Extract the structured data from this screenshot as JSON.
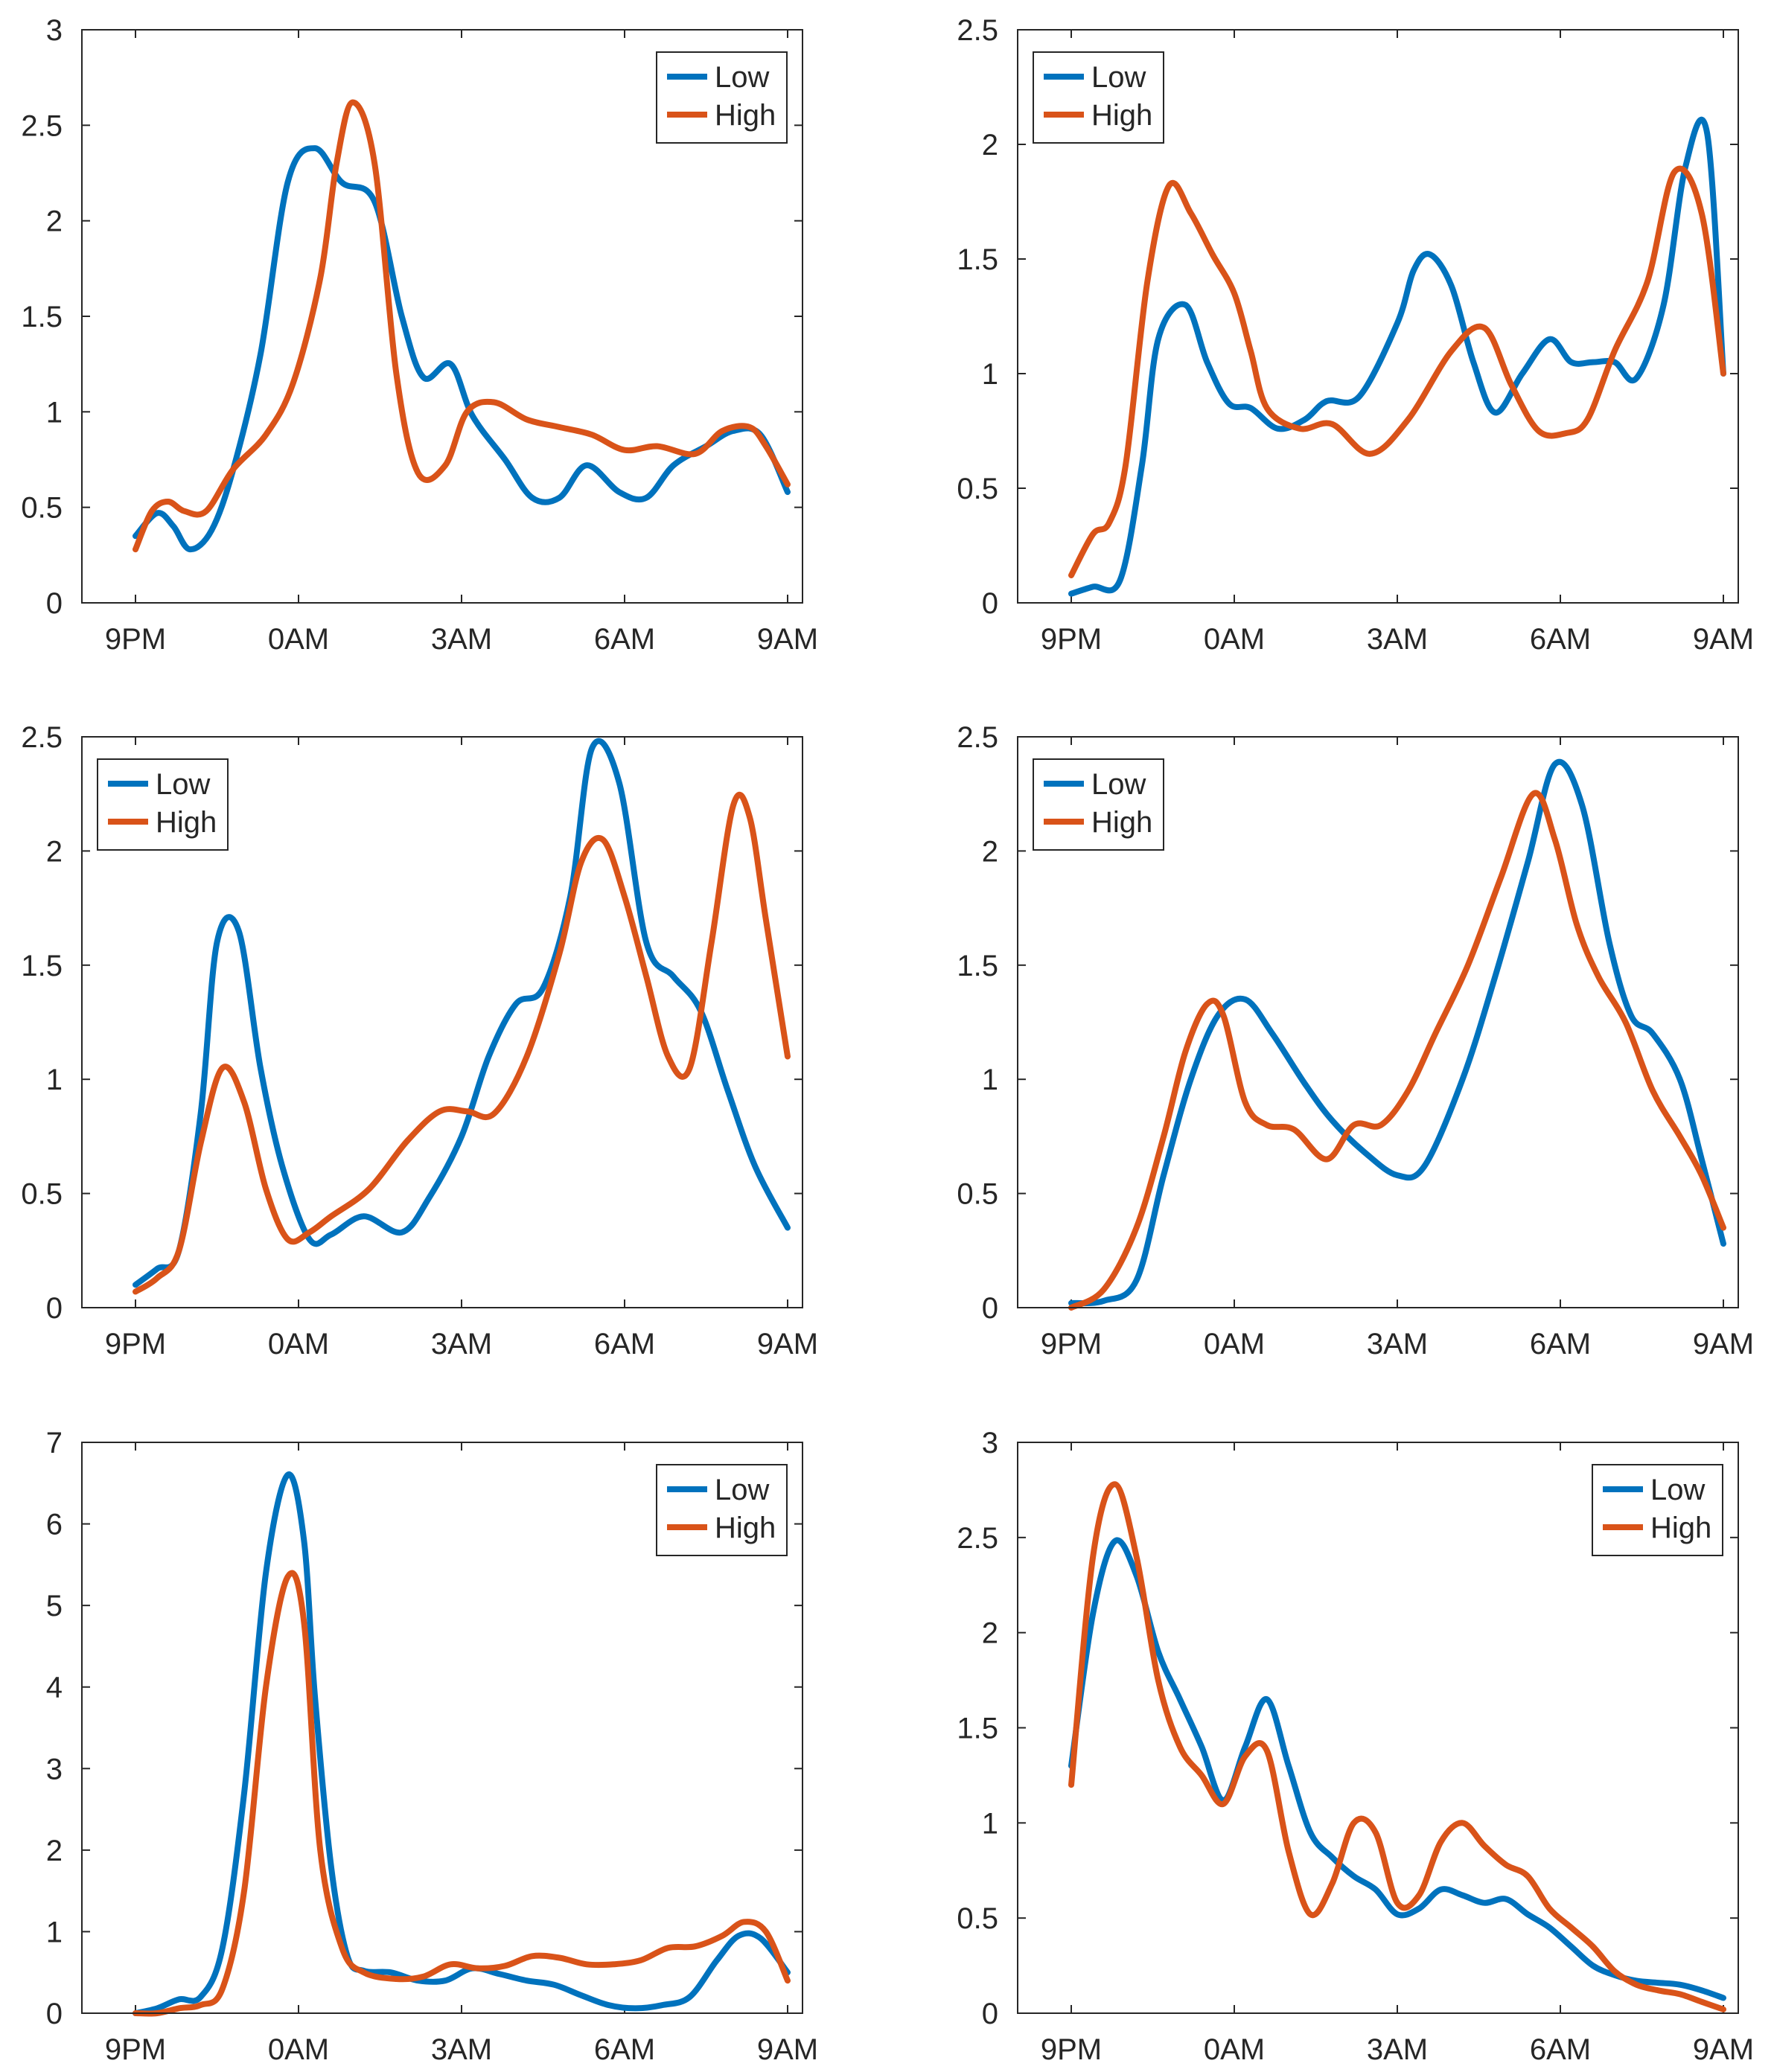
{
  "colors": {
    "low": "#0072BD",
    "high": "#D95319",
    "axis": "#262626",
    "grid": "#bdbdbd"
  },
  "chart_data": [
    {
      "type": "line",
      "x_tick_labels": [
        "9PM",
        "0AM",
        "3AM",
        "6AM",
        "9AM"
      ],
      "xlim": [
        0,
        12
      ],
      "ylim": [
        0,
        3
      ],
      "y_ticks": [
        0,
        0.5,
        1,
        1.5,
        2,
        2.5,
        3
      ],
      "y_tick_labels": [
        "0",
        "0.5",
        "1",
        "1.5",
        "2",
        "2.5",
        "3"
      ],
      "legend_position": "top-right",
      "series": [
        {
          "name": "Low",
          "color": "#0072BD",
          "x": [
            0,
            0.4,
            0.7,
            1.0,
            1.4,
            1.8,
            2.3,
            2.8,
            3.3,
            3.8,
            4.4,
            4.9,
            5.3,
            5.8,
            6.2,
            6.8,
            7.3,
            7.8,
            8.3,
            8.9,
            9.4,
            9.9,
            10.5,
            11.0,
            11.5,
            12.0
          ],
          "y": [
            0.35,
            0.47,
            0.4,
            0.28,
            0.38,
            0.7,
            1.3,
            2.2,
            2.38,
            2.2,
            2.1,
            1.5,
            1.18,
            1.25,
            0.98,
            0.75,
            0.55,
            0.55,
            0.72,
            0.58,
            0.55,
            0.72,
            0.82,
            0.9,
            0.88,
            0.58
          ]
        },
        {
          "name": "High",
          "color": "#D95319",
          "x": [
            0,
            0.3,
            0.6,
            0.9,
            1.3,
            1.8,
            2.4,
            2.9,
            3.4,
            3.7,
            4.0,
            4.4,
            4.8,
            5.2,
            5.7,
            6.1,
            6.6,
            7.2,
            7.8,
            8.4,
            9.0,
            9.6,
            10.3,
            10.8,
            11.3,
            11.6,
            12.0
          ],
          "y": [
            0.28,
            0.48,
            0.53,
            0.48,
            0.48,
            0.7,
            0.88,
            1.15,
            1.7,
            2.3,
            2.62,
            2.3,
            1.2,
            0.68,
            0.72,
            1.0,
            1.05,
            0.96,
            0.92,
            0.88,
            0.8,
            0.82,
            0.78,
            0.9,
            0.92,
            0.82,
            0.62
          ]
        }
      ]
    },
    {
      "type": "line",
      "x_tick_labels": [
        "9PM",
        "0AM",
        "3AM",
        "6AM",
        "9AM"
      ],
      "xlim": [
        0,
        12
      ],
      "ylim": [
        0,
        2.5
      ],
      "y_ticks": [
        0,
        0.5,
        1,
        1.5,
        2,
        2.5
      ],
      "y_tick_labels": [
        "0",
        "0.5",
        "1",
        "1.5",
        "2",
        "2.5"
      ],
      "legend_position": "top-left",
      "series": [
        {
          "name": "Low",
          "color": "#0072BD",
          "x": [
            0,
            0.4,
            0.9,
            1.3,
            1.6,
            2.1,
            2.5,
            2.9,
            3.3,
            3.8,
            4.3,
            4.7,
            5.3,
            6.0,
            6.3,
            6.6,
            7.0,
            7.4,
            7.8,
            8.3,
            8.8,
            9.2,
            9.6,
            10.0,
            10.4,
            10.9,
            11.3,
            11.7,
            12.0
          ],
          "y": [
            0.04,
            0.07,
            0.1,
            0.6,
            1.15,
            1.3,
            1.05,
            0.87,
            0.85,
            0.76,
            0.8,
            0.88,
            0.9,
            1.22,
            1.45,
            1.52,
            1.38,
            1.05,
            0.83,
            1.0,
            1.15,
            1.05,
            1.05,
            1.05,
            0.98,
            1.3,
            1.9,
            2.05,
            1.0
          ]
        },
        {
          "name": "High",
          "color": "#D95319",
          "x": [
            0,
            0.4,
            0.7,
            1.0,
            1.4,
            1.8,
            2.2,
            2.6,
            3.0,
            3.3,
            3.6,
            4.2,
            4.8,
            5.5,
            6.2,
            7.0,
            7.6,
            8.1,
            8.6,
            9.1,
            9.5,
            10.0,
            10.6,
            11.1,
            11.6,
            12.0
          ],
          "y": [
            0.12,
            0.3,
            0.35,
            0.6,
            1.4,
            1.82,
            1.7,
            1.52,
            1.35,
            1.1,
            0.85,
            0.76,
            0.78,
            0.65,
            0.8,
            1.1,
            1.2,
            0.95,
            0.75,
            0.74,
            0.8,
            1.1,
            1.4,
            1.88,
            1.7,
            1.0
          ]
        }
      ]
    },
    {
      "type": "line",
      "x_tick_labels": [
        "9PM",
        "0AM",
        "3AM",
        "6AM",
        "9AM"
      ],
      "xlim": [
        0,
        12
      ],
      "ylim": [
        0,
        2.5
      ],
      "y_ticks": [
        0,
        0.5,
        1,
        1.5,
        2,
        2.5
      ],
      "y_tick_labels": [
        "0",
        "0.5",
        "1",
        "1.5",
        "2",
        "2.5"
      ],
      "legend_position": "top-left",
      "series": [
        {
          "name": "Low",
          "color": "#0072BD",
          "x": [
            0,
            0.4,
            0.8,
            1.2,
            1.5,
            1.9,
            2.3,
            2.7,
            3.2,
            3.6,
            4.2,
            4.9,
            5.4,
            6.0,
            6.5,
            7.0,
            7.5,
            8.0,
            8.4,
            8.9,
            9.4,
            9.9,
            10.4,
            10.9,
            11.4,
            12.0
          ],
          "y": [
            0.1,
            0.17,
            0.25,
            0.85,
            1.6,
            1.65,
            1.05,
            0.62,
            0.3,
            0.32,
            0.4,
            0.33,
            0.48,
            0.75,
            1.1,
            1.33,
            1.4,
            1.8,
            2.45,
            2.3,
            1.6,
            1.45,
            1.3,
            0.95,
            0.62,
            0.35
          ]
        },
        {
          "name": "High",
          "color": "#D95319",
          "x": [
            0,
            0.4,
            0.8,
            1.2,
            1.6,
            2.0,
            2.4,
            2.8,
            3.2,
            3.6,
            4.3,
            5.0,
            5.6,
            6.1,
            6.6,
            7.2,
            7.8,
            8.2,
            8.6,
            9.0,
            9.4,
            9.8,
            10.2,
            10.6,
            11.0,
            11.3,
            11.6,
            12.0
          ],
          "y": [
            0.07,
            0.13,
            0.25,
            0.72,
            1.05,
            0.9,
            0.52,
            0.3,
            0.33,
            0.4,
            0.52,
            0.73,
            0.86,
            0.86,
            0.85,
            1.1,
            1.55,
            1.95,
            2.05,
            1.8,
            1.45,
            1.1,
            1.05,
            1.6,
            2.2,
            2.15,
            1.7,
            1.1
          ]
        }
      ]
    },
    {
      "type": "line",
      "x_tick_labels": [
        "9PM",
        "0AM",
        "3AM",
        "6AM",
        "9AM"
      ],
      "xlim": [
        0,
        12
      ],
      "ylim": [
        0,
        2.5
      ],
      "y_ticks": [
        0,
        0.5,
        1,
        1.5,
        2,
        2.5
      ],
      "y_tick_labels": [
        "0",
        "0.5",
        "1",
        "1.5",
        "2",
        "2.5"
      ],
      "legend_position": "top-left",
      "series": [
        {
          "name": "Low",
          "color": "#0072BD",
          "x": [
            0,
            0.6,
            1.2,
            1.7,
            2.2,
            2.7,
            3.2,
            3.7,
            4.3,
            4.8,
            5.4,
            6.0,
            6.5,
            7.2,
            7.8,
            8.4,
            8.9,
            9.4,
            9.9,
            10.3,
            10.7,
            11.2,
            11.6,
            12.0
          ],
          "y": [
            0.02,
            0.03,
            0.12,
            0.58,
            1.0,
            1.28,
            1.35,
            1.2,
            0.98,
            0.82,
            0.68,
            0.58,
            0.62,
            1.0,
            1.45,
            1.95,
            2.38,
            2.2,
            1.6,
            1.28,
            1.2,
            1.0,
            0.65,
            0.28
          ]
        },
        {
          "name": "High",
          "color": "#D95319",
          "x": [
            0,
            0.6,
            1.2,
            1.7,
            2.1,
            2.5,
            2.8,
            3.2,
            3.6,
            4.1,
            4.7,
            5.2,
            5.7,
            6.2,
            6.7,
            7.3,
            7.9,
            8.5,
            8.9,
            9.3,
            9.7,
            10.2,
            10.7,
            11.2,
            11.6,
            12.0
          ],
          "y": [
            0.0,
            0.08,
            0.35,
            0.75,
            1.12,
            1.33,
            1.28,
            0.9,
            0.8,
            0.78,
            0.65,
            0.8,
            0.8,
            0.95,
            1.2,
            1.5,
            1.88,
            2.25,
            2.05,
            1.68,
            1.45,
            1.25,
            0.95,
            0.75,
            0.58,
            0.35
          ]
        }
      ]
    },
    {
      "type": "line",
      "x_tick_labels": [
        "9PM",
        "0AM",
        "3AM",
        "6AM",
        "9AM"
      ],
      "xlim": [
        0,
        12
      ],
      "ylim": [
        0,
        7
      ],
      "y_ticks": [
        0,
        1,
        2,
        3,
        4,
        5,
        6,
        7
      ],
      "y_tick_labels": [
        "0",
        "1",
        "2",
        "3",
        "4",
        "5",
        "6",
        "7"
      ],
      "legend_position": "top-right",
      "series": [
        {
          "name": "Low",
          "color": "#0072BD",
          "x": [
            0,
            0.4,
            0.8,
            1.2,
            1.6,
            2.0,
            2.4,
            2.8,
            3.1,
            3.3,
            3.6,
            3.9,
            4.2,
            4.7,
            5.2,
            5.7,
            6.2,
            6.7,
            7.2,
            7.7,
            8.2,
            8.7,
            9.2,
            9.7,
            10.2,
            10.7,
            11.1,
            11.5,
            12.0
          ],
          "y": [
            0.0,
            0.06,
            0.17,
            0.2,
            0.8,
            2.7,
            5.4,
            6.6,
            5.8,
            3.9,
            1.8,
            0.7,
            0.52,
            0.5,
            0.4,
            0.4,
            0.55,
            0.48,
            0.4,
            0.35,
            0.22,
            0.1,
            0.06,
            0.1,
            0.2,
            0.65,
            0.95,
            0.92,
            0.5
          ]
        },
        {
          "name": "High",
          "color": "#D95319",
          "x": [
            0,
            0.4,
            0.8,
            1.2,
            1.6,
            2.0,
            2.4,
            2.8,
            3.1,
            3.4,
            3.8,
            4.2,
            4.8,
            5.3,
            5.8,
            6.3,
            6.8,
            7.3,
            7.8,
            8.3,
            8.8,
            9.3,
            9.8,
            10.3,
            10.8,
            11.2,
            11.6,
            12.0
          ],
          "y": [
            0.0,
            0.0,
            0.06,
            0.1,
            0.3,
            1.5,
            4.0,
            5.35,
            4.8,
            2.0,
            0.8,
            0.5,
            0.42,
            0.45,
            0.6,
            0.55,
            0.58,
            0.7,
            0.68,
            0.6,
            0.6,
            0.65,
            0.8,
            0.82,
            0.95,
            1.12,
            1.0,
            0.4
          ]
        }
      ]
    },
    {
      "type": "line",
      "x_tick_labels": [
        "9PM",
        "0AM",
        "3AM",
        "6AM",
        "9AM"
      ],
      "xlim": [
        0,
        12
      ],
      "ylim": [
        0,
        3
      ],
      "y_ticks": [
        0,
        0.5,
        1,
        1.5,
        2,
        2.5,
        3
      ],
      "y_tick_labels": [
        "0",
        "0.5",
        "1",
        "1.5",
        "2",
        "2.5",
        "3"
      ],
      "legend_position": "top-right",
      "series": [
        {
          "name": "Low",
          "color": "#0072BD",
          "x": [
            0,
            0.4,
            0.8,
            1.2,
            1.6,
            2.0,
            2.4,
            2.8,
            3.2,
            3.6,
            4.0,
            4.4,
            4.8,
            5.2,
            5.6,
            6.0,
            6.4,
            6.8,
            7.2,
            7.6,
            8.0,
            8.4,
            8.8,
            9.2,
            9.6,
            10.0,
            10.4,
            10.8,
            11.2,
            11.6,
            12.0
          ],
          "y": [
            1.3,
            2.1,
            2.48,
            2.3,
            1.9,
            1.65,
            1.4,
            1.12,
            1.4,
            1.65,
            1.3,
            0.95,
            0.82,
            0.72,
            0.65,
            0.52,
            0.55,
            0.65,
            0.62,
            0.58,
            0.6,
            0.52,
            0.45,
            0.35,
            0.25,
            0.2,
            0.17,
            0.16,
            0.15,
            0.12,
            0.08
          ]
        },
        {
          "name": "High",
          "color": "#D95319",
          "x": [
            0,
            0.4,
            0.8,
            1.2,
            1.6,
            2.0,
            2.4,
            2.8,
            3.2,
            3.6,
            4.0,
            4.4,
            4.8,
            5.2,
            5.6,
            6.0,
            6.4,
            6.8,
            7.2,
            7.6,
            8.0,
            8.4,
            8.8,
            9.2,
            9.6,
            10.0,
            10.4,
            10.8,
            11.2,
            11.6,
            12.0
          ],
          "y": [
            1.2,
            2.4,
            2.78,
            2.4,
            1.75,
            1.4,
            1.25,
            1.1,
            1.35,
            1.38,
            0.85,
            0.52,
            0.68,
            1.0,
            0.95,
            0.58,
            0.62,
            0.9,
            1.0,
            0.88,
            0.78,
            0.72,
            0.55,
            0.45,
            0.35,
            0.22,
            0.15,
            0.12,
            0.1,
            0.06,
            0.02
          ]
        }
      ]
    }
  ]
}
